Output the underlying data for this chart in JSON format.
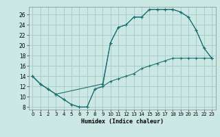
{
  "xlabel": "Humidex (Indice chaleur)",
  "bg_color": "#cce8e4",
  "grid_color": "#aacccc",
  "line_color": "#1a7070",
  "xlim": [
    -0.5,
    23.5
  ],
  "ylim": [
    7.5,
    27.5
  ],
  "xticks": [
    0,
    1,
    2,
    3,
    4,
    5,
    6,
    7,
    8,
    9,
    10,
    11,
    12,
    13,
    14,
    15,
    16,
    17,
    18,
    19,
    20,
    21,
    22,
    23
  ],
  "yticks": [
    8,
    10,
    12,
    14,
    16,
    18,
    20,
    22,
    24,
    26
  ],
  "curve1_x": [
    0,
    1,
    2,
    3,
    4,
    5,
    6,
    7,
    8,
    9,
    10,
    11,
    12,
    13,
    14,
    15,
    16,
    17,
    18,
    19,
    20,
    21,
    22,
    23
  ],
  "curve1_y": [
    14,
    12.5,
    11.5,
    10.5,
    9.5,
    8.5,
    8.0,
    8.0,
    11.5,
    12.0,
    20.5,
    23.5,
    24.0,
    25.5,
    25.5,
    27.0,
    27.0,
    27.0,
    27.0,
    26.5,
    25.5,
    23.0,
    19.5,
    17.5
  ],
  "curve2_x": [
    0,
    1,
    2,
    3,
    9,
    10,
    11,
    12,
    13,
    14,
    15,
    16,
    17,
    18,
    19,
    20,
    21,
    22,
    23
  ],
  "curve2_y": [
    14,
    12.5,
    11.5,
    10.5,
    12.5,
    20.5,
    23.5,
    24.0,
    25.5,
    25.5,
    27.0,
    27.0,
    27.0,
    27.0,
    26.5,
    25.5,
    23.0,
    19.5,
    17.5
  ],
  "curve3_x": [
    0,
    1,
    2,
    3,
    4,
    5,
    6,
    7,
    8,
    9,
    10,
    11,
    12,
    13,
    14,
    15,
    16,
    17,
    18,
    19,
    20,
    21,
    22,
    23
  ],
  "curve3_y": [
    14,
    12.5,
    11.5,
    10.5,
    9.5,
    8.5,
    8.0,
    8.0,
    11.5,
    12.0,
    13.0,
    13.5,
    14.0,
    14.5,
    15.5,
    16.0,
    16.5,
    17.0,
    17.5,
    17.5,
    17.5,
    17.5,
    17.5,
    17.5
  ]
}
